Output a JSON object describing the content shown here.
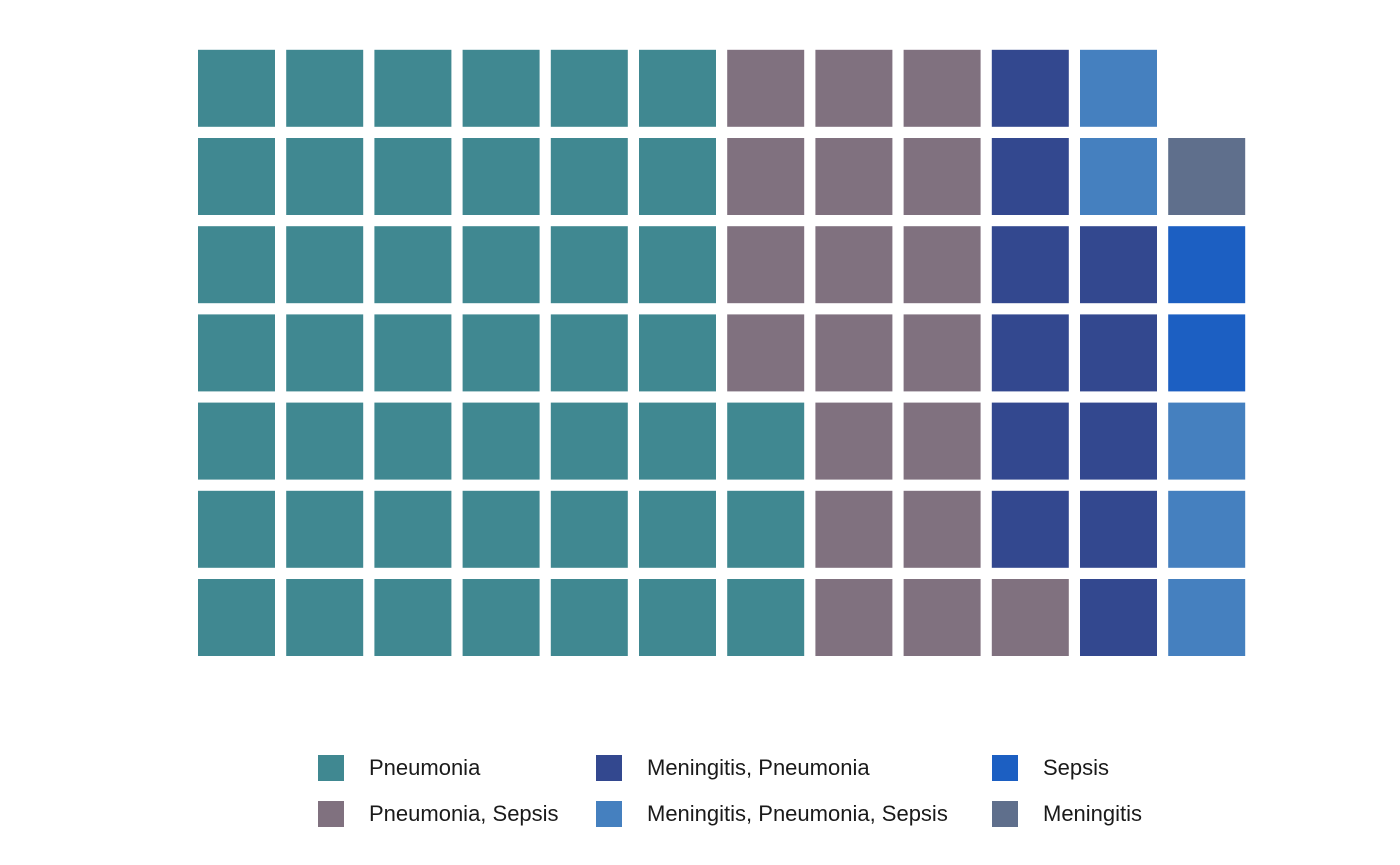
{
  "chart_data": {
    "type": "waffle",
    "rows": 7,
    "columns": 12,
    "fill_direction": "column-major, bottom-to-top",
    "grid": false,
    "legend_placement": "bottom",
    "categories": [
      {
        "name": "Pneumonia",
        "count": 45,
        "color": "#408891"
      },
      {
        "name": "Pneumonia, Sepsis",
        "count": 19,
        "color": "#80717f"
      },
      {
        "name": "Meningitis, Pneumonia",
        "count": 11,
        "color": "#33488f"
      },
      {
        "name": "Meningitis, Pneumonia, Sepsis",
        "count": 5,
        "color": "#4580bf"
      },
      {
        "name": "Sepsis",
        "count": 2,
        "color": "#1c5fc2"
      },
      {
        "name": "Meningitis",
        "count": 1,
        "color": "#5f6f8c"
      }
    ],
    "legend_order": [
      "Pneumonia",
      "Pneumonia, Sepsis",
      "Meningitis, Pneumonia",
      "Meningitis, Pneumonia, Sepsis",
      "Sepsis",
      "Meningitis"
    ]
  }
}
